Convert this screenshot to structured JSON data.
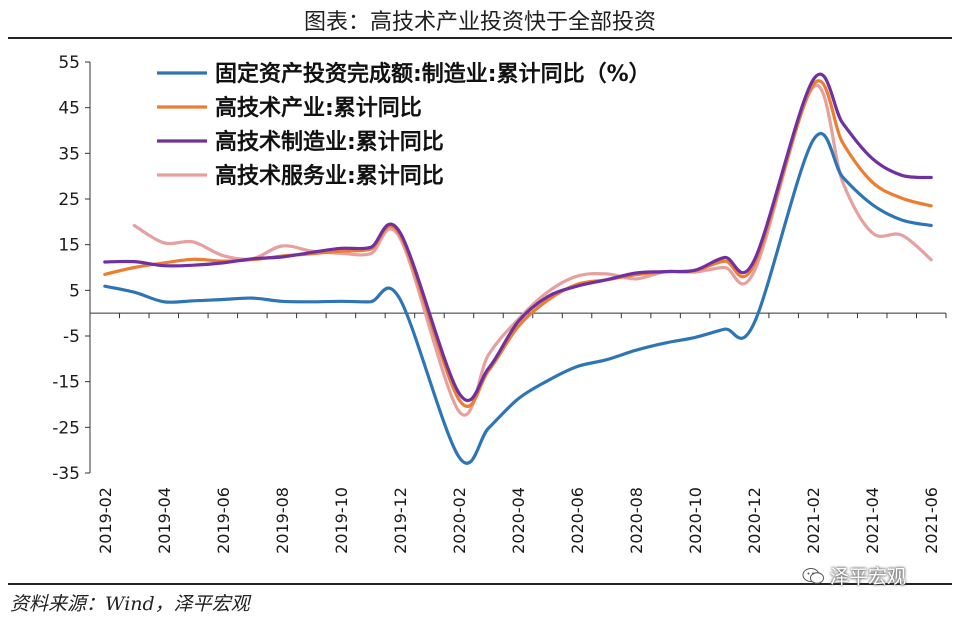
{
  "header": {
    "title": "图表：高技术产业投资快于全部投资"
  },
  "footer": {
    "source": "资料来源：Wind，泽平宏观",
    "watermark": "泽平宏观"
  },
  "icons": {
    "watermark_icon": "wechat-icon"
  },
  "chart_data": {
    "type": "line",
    "title": "",
    "xlabel": "",
    "ylabel": "",
    "ylim": [
      -35,
      55
    ],
    "yticks": [
      55,
      45,
      35,
      25,
      15,
      5,
      -5,
      -15,
      -25,
      -35
    ],
    "grid": false,
    "legend_position": "top-left",
    "categories": [
      "2019-02",
      "2019-03",
      "2019-04",
      "2019-05",
      "2019-06",
      "2019-07",
      "2019-08",
      "2019-09",
      "2019-10",
      "2019-11",
      "2019-12",
      "2020-01",
      "2020-02",
      "2020-03",
      "2020-04",
      "2020-05",
      "2020-06",
      "2020-07",
      "2020-08",
      "2020-09",
      "2020-10",
      "2020-11",
      "2020-12",
      "2021-01",
      "2021-02",
      "2021-03",
      "2021-04",
      "2021-05",
      "2021-06"
    ],
    "xtick_labels": [
      "2019-02",
      "2019-04",
      "2019-06",
      "2019-08",
      "2019-10",
      "2019-12",
      "2020-02",
      "2020-04",
      "2020-06",
      "2020-08",
      "2020-10",
      "2020-12",
      "2021-02",
      "2021-04",
      "2021-06"
    ],
    "series": [
      {
        "name": "固定资产投资完成额:制造业:累计同比（%）",
        "color": "#2e75b6",
        "values": [
          5.9,
          4.6,
          2.5,
          2.7,
          3.0,
          3.3,
          2.6,
          2.5,
          2.6,
          2.5,
          3.1,
          null,
          -31.5,
          -25.2,
          -18.8,
          -14.8,
          -11.7,
          -10.2,
          -8.1,
          -6.5,
          -5.3,
          -3.5,
          -2.2,
          null,
          37.9,
          29.8,
          23.8,
          20.4,
          19.2
        ]
      },
      {
        "name": "高技术产业:累计同比",
        "color": "#ed7d31",
        "values": [
          8.5,
          10.0,
          11.0,
          11.8,
          11.4,
          11.7,
          12.5,
          13.0,
          13.6,
          14.0,
          17.2,
          null,
          -18.9,
          -12.6,
          -3.0,
          2.8,
          6.3,
          7.3,
          8.4,
          9.1,
          9.3,
          11.4,
          10.6,
          null,
          50.0,
          37.3,
          28.7,
          25.2,
          23.5
        ]
      },
      {
        "name": "高技术制造业:累计同比",
        "color": "#7030a0",
        "values": [
          11.2,
          11.3,
          10.4,
          10.5,
          11.0,
          11.9,
          12.3,
          13.3,
          14.2,
          14.4,
          17.7,
          null,
          -17.5,
          -12.1,
          -1.9,
          3.6,
          5.9,
          7.3,
          8.8,
          9.1,
          9.4,
          12.2,
          11.5,
          null,
          51.1,
          41.6,
          33.9,
          30.2,
          29.7
        ]
      },
      {
        "name": "高技术服务业:累计同比",
        "color": "#e6a0a0",
        "values": [
          null,
          19.2,
          15.4,
          15.6,
          12.6,
          11.9,
          14.7,
          13.6,
          13.1,
          13.0,
          16.5,
          null,
          -21.5,
          -9.1,
          -1.4,
          4.6,
          8.1,
          8.6,
          7.5,
          9.1,
          9.0,
          10.0,
          9.1,
          null,
          49.5,
          28.7,
          17.6,
          17.1,
          11.7
        ]
      }
    ]
  }
}
